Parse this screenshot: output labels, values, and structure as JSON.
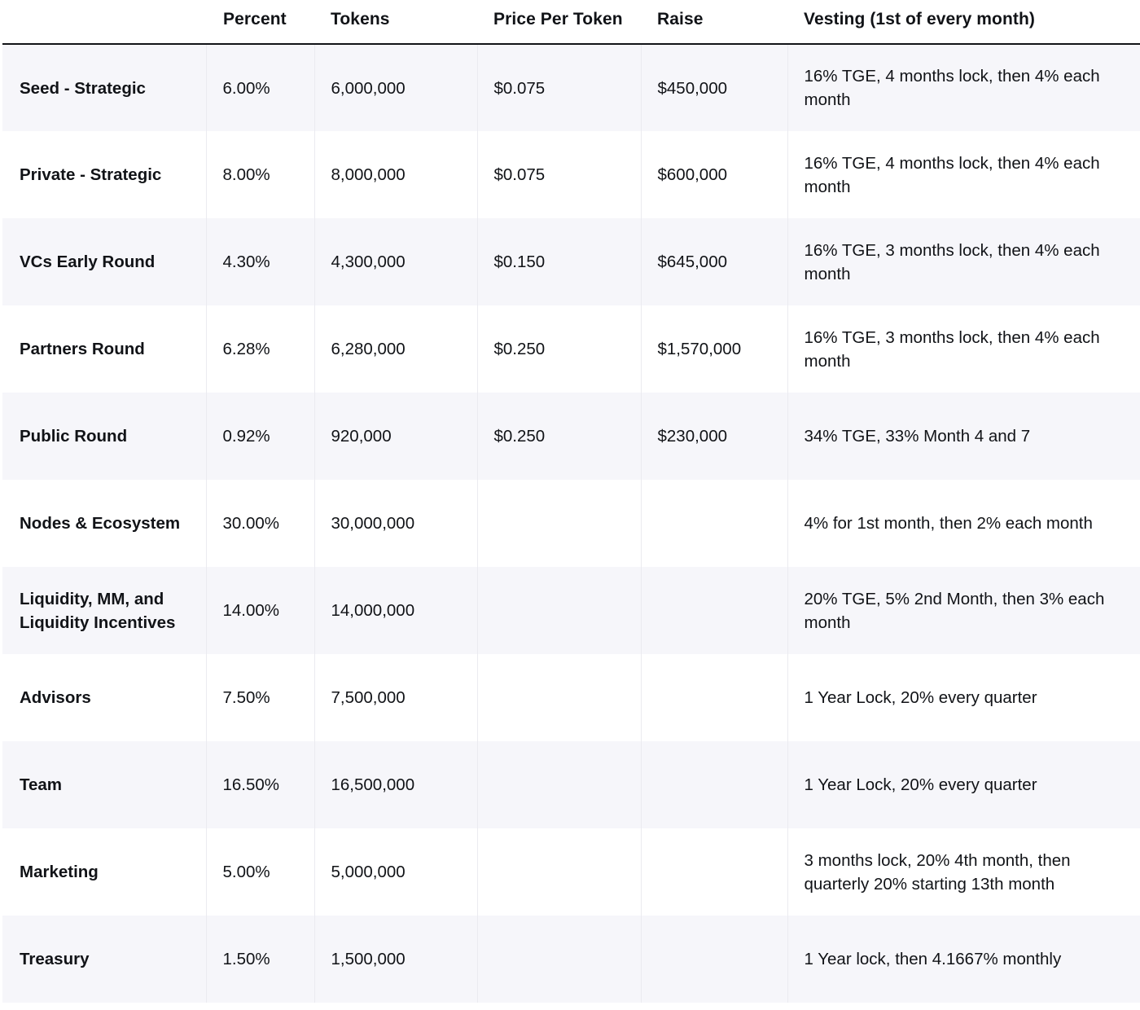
{
  "header": {
    "col_label": "",
    "percent": "Percent",
    "tokens": "Tokens",
    "price": "Price Per Token",
    "raise": "Raise",
    "vesting": "Vesting (1st of every month)"
  },
  "rows": [
    {
      "name": "Seed - Strategic",
      "percent": "6.00%",
      "tokens": "6,000,000",
      "price": "$0.075",
      "raise": "$450,000",
      "vesting": "16% TGE, 4 months lock, then 4% each month"
    },
    {
      "name": "Private - Strategic",
      "percent": "8.00%",
      "tokens": "8,000,000",
      "price": "$0.075",
      "raise": "$600,000",
      "vesting": "16% TGE, 4 months lock, then 4% each month"
    },
    {
      "name": "VCs Early Round",
      "percent": "4.30%",
      "tokens": "4,300,000",
      "price": "$0.150",
      "raise": "$645,000",
      "vesting": "16% TGE, 3 months lock, then 4% each month"
    },
    {
      "name": "Partners Round",
      "percent": "6.28%",
      "tokens": "6,280,000",
      "price": "$0.250",
      "raise": "$1,570,000",
      "vesting": "16% TGE, 3 months lock, then 4% each month"
    },
    {
      "name": "Public Round",
      "percent": "0.92%",
      "tokens": "920,000",
      "price": "$0.250",
      "raise": "$230,000",
      "vesting": "34% TGE, 33% Month 4 and 7"
    },
    {
      "name": "Nodes & Ecosystem",
      "percent": "30.00%",
      "tokens": "30,000,000",
      "price": "",
      "raise": "",
      "vesting": "4% for 1st month, then 2% each month"
    },
    {
      "name": "Liquidity, MM, and Liquidity Incentives",
      "percent": "14.00%",
      "tokens": "14,000,000",
      "price": "",
      "raise": "",
      "vesting": "20% TGE, 5% 2nd Month, then 3% each month"
    },
    {
      "name": "Advisors",
      "percent": "7.50%",
      "tokens": "7,500,000",
      "price": "",
      "raise": "",
      "vesting": "1 Year Lock, 20% every quarter"
    },
    {
      "name": "Team",
      "percent": "16.50%",
      "tokens": "16,500,000",
      "price": "",
      "raise": "",
      "vesting": "1 Year Lock, 20% every quarter"
    },
    {
      "name": "Marketing",
      "percent": "5.00%",
      "tokens": "5,000,000",
      "price": "",
      "raise": "",
      "vesting": "3 months lock, 20% 4th month, then quarterly 20% starting 13th month"
    },
    {
      "name": "Treasury",
      "percent": "1.50%",
      "tokens": "1,500,000",
      "price": "",
      "raise": "",
      "vesting": "1 Year lock, then 4.1667% monthly"
    }
  ]
}
